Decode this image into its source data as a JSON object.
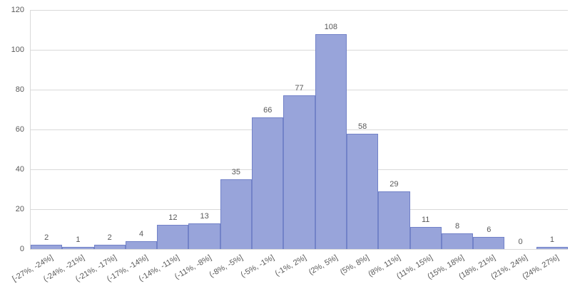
{
  "chart_data": {
    "type": "bar",
    "chart_kind": "histogram",
    "title": "",
    "xlabel": "",
    "ylabel": "",
    "categories": [
      "[-27%, -24%]",
      "(-24%, -21%]",
      "(-21%, -17%]",
      "(-17%, -14%]",
      "(-14%, -11%]",
      "(-11%, -8%]",
      "(-8%, -5%]",
      "(-5%, -1%]",
      "(-1%, 2%]",
      "(2%, 5%]",
      "(5%, 8%]",
      "(8%, 11%]",
      "(11%, 15%]",
      "(15%, 18%]",
      "(18%, 21%]",
      "(21%, 24%]",
      "(24%, 27%]"
    ],
    "values": [
      2,
      1,
      2,
      4,
      12,
      13,
      35,
      66,
      77,
      108,
      58,
      29,
      11,
      8,
      6,
      0,
      1
    ],
    "ylim": [
      0,
      120
    ],
    "yticks": [
      0,
      20,
      40,
      60,
      80,
      100,
      120
    ],
    "grid": true,
    "legend": false,
    "data_labels": true,
    "colors": {
      "bar_fill": "#98a4da",
      "bar_border": "#7282c8",
      "gridline": "#d9d9d9",
      "axis_line": "#d9d9d9",
      "label_text": "#595959",
      "background": "#ffffff"
    }
  }
}
